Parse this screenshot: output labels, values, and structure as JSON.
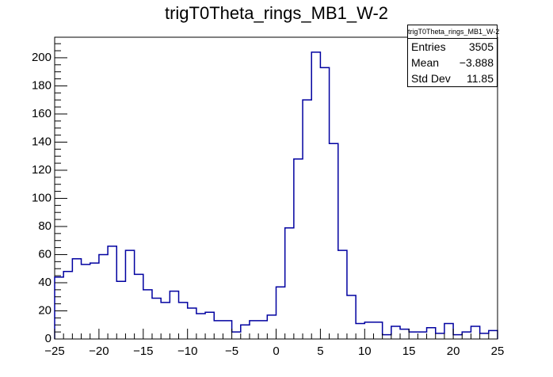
{
  "chart_data": {
    "type": "bar",
    "style": "histogram-step",
    "title": "trigT0Theta_rings_MB1_W-2",
    "xlabel": "",
    "ylabel": "",
    "xlim": [
      -25,
      25
    ],
    "ylim": [
      0,
      214.6
    ],
    "bin_edges_start": -25,
    "bin_width": 1,
    "values": [
      44,
      48,
      57,
      53,
      54,
      60,
      66,
      41,
      63,
      46,
      35,
      29,
      26,
      34,
      26,
      22,
      18,
      19,
      13,
      13,
      5,
      10,
      13,
      13,
      17,
      37,
      79,
      128,
      170,
      204,
      193,
      139,
      63,
      31,
      11,
      12,
      12,
      3,
      9,
      7,
      5,
      5,
      8,
      4,
      11,
      3,
      5,
      9,
      4,
      6
    ],
    "xticks": [
      "-25",
      "-20",
      "-15",
      "-10",
      "-5",
      "0",
      "5",
      "10",
      "15",
      "20",
      "25"
    ],
    "yticks": [
      "0",
      "20",
      "40",
      "60",
      "80",
      "100",
      "120",
      "140",
      "160",
      "180",
      "200"
    ],
    "line_color": "#0000a0",
    "grid": false,
    "legend": "top-right"
  },
  "stats": {
    "name": "trigT0Theta_rings_MB1_W-2",
    "rows": [
      {
        "label": "Entries",
        "value": "3505"
      },
      {
        "label": "Mean",
        "value": "−3.888"
      },
      {
        "label": "Std Dev",
        "value": "11.85"
      }
    ]
  }
}
